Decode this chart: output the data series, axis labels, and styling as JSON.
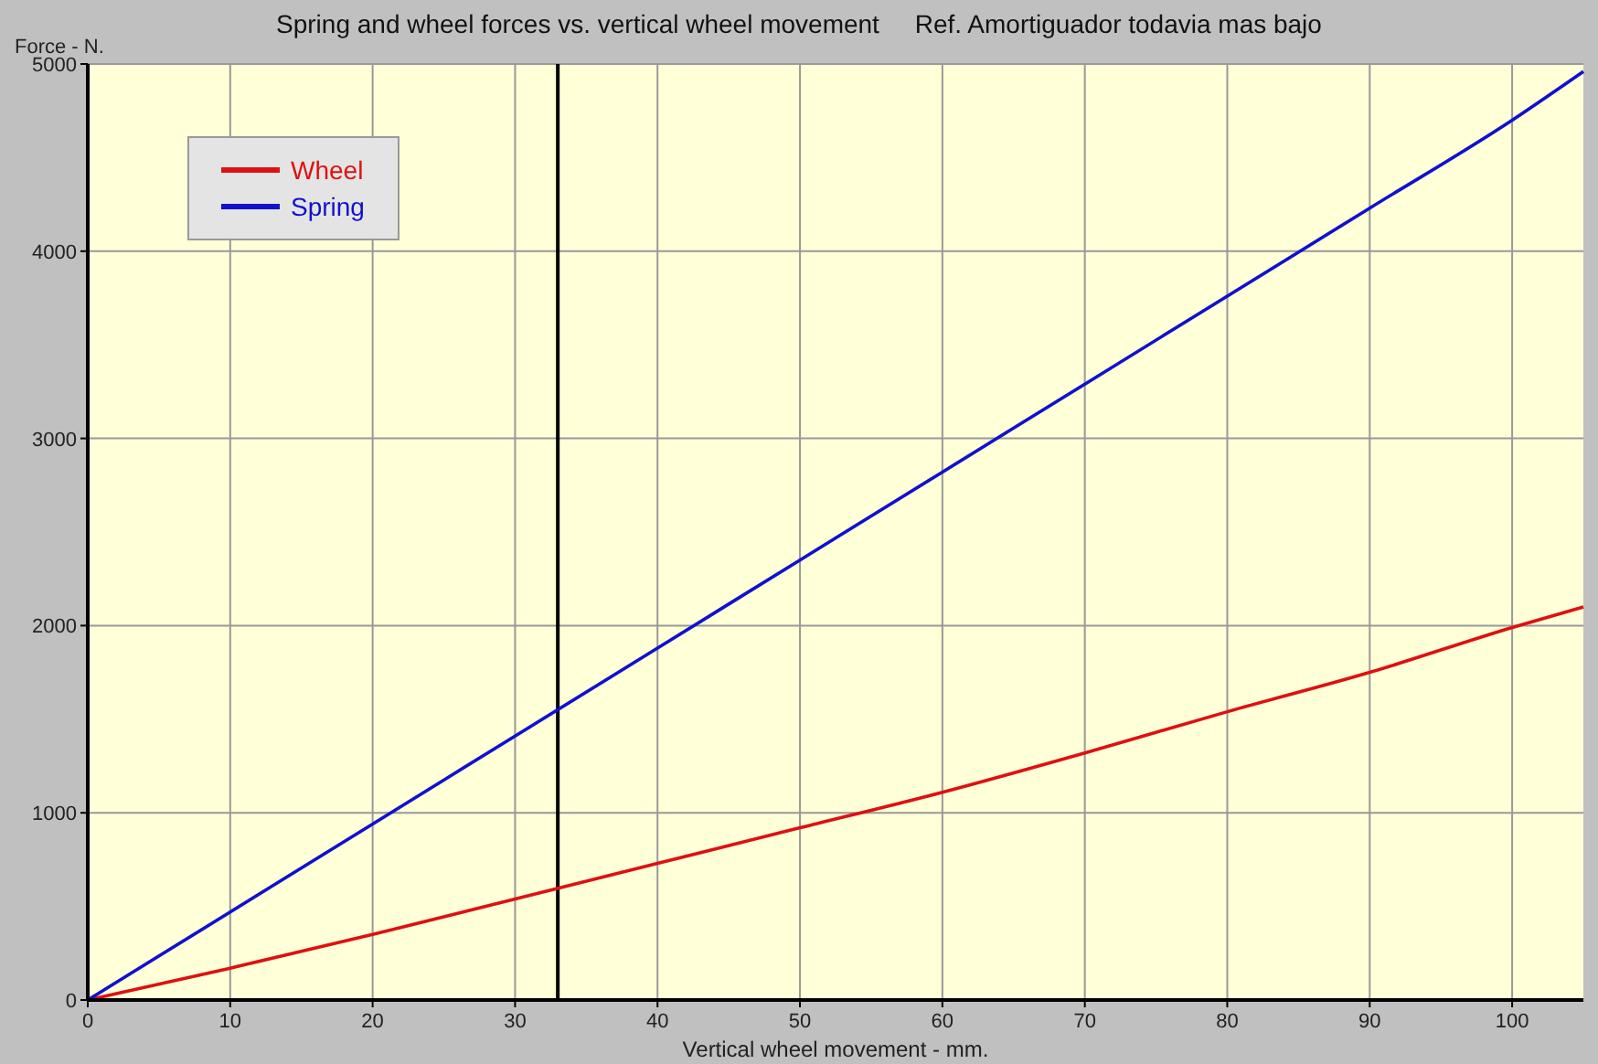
{
  "chart_data": {
    "type": "line",
    "title": "Spring and wheel forces vs. vertical wheel movement     Ref. Amortiguador todavia mas bajo",
    "xlabel": "Vertical wheel movement - mm.",
    "ylabel": "Force - N.",
    "x": [
      0,
      10,
      20,
      30,
      40,
      50,
      60,
      70,
      80,
      90,
      100,
      105
    ],
    "series": [
      {
        "name": "Wheel",
        "color": "#dd1111",
        "values": [
          0,
          170,
          350,
          540,
          730,
          920,
          1110,
          1320,
          1540,
          1750,
          1990,
          2100
        ]
      },
      {
        "name": "Spring",
        "color": "#1111cc",
        "values": [
          0,
          470,
          940,
          1410,
          1880,
          2350,
          2820,
          3290,
          3760,
          4230,
          4700,
          4960
        ]
      }
    ],
    "xlim": [
      0,
      105
    ],
    "xticks": [
      0,
      10,
      20,
      30,
      40,
      50,
      60,
      70,
      80,
      90,
      100
    ],
    "ylim": [
      0,
      5000
    ],
    "yticks": [
      0,
      1000,
      2000,
      3000,
      4000,
      5000
    ],
    "grid": true,
    "legend": "top left",
    "marker": "none",
    "line_style": "solid",
    "ref_lines": [
      {
        "axis": "x",
        "value": 33,
        "color": "#000000"
      }
    ]
  }
}
